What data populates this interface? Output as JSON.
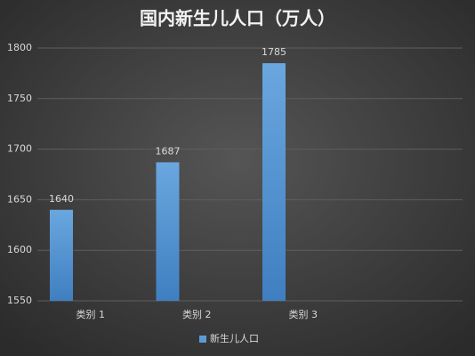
{
  "chart_data": {
    "type": "bar",
    "title": "国内新生儿人口（万人）",
    "categories": [
      "类别 1",
      "类别 2",
      "类别 3"
    ],
    "series": [
      {
        "name": "新生儿人口",
        "color": "#5b9bd5",
        "values": [
          1640,
          1687,
          1785
        ]
      }
    ],
    "ylim": [
      1550,
      1800
    ],
    "yticks": [
      1550,
      1600,
      1650,
      1700,
      1750,
      1800
    ],
    "grid": true,
    "legend": "bottom"
  }
}
